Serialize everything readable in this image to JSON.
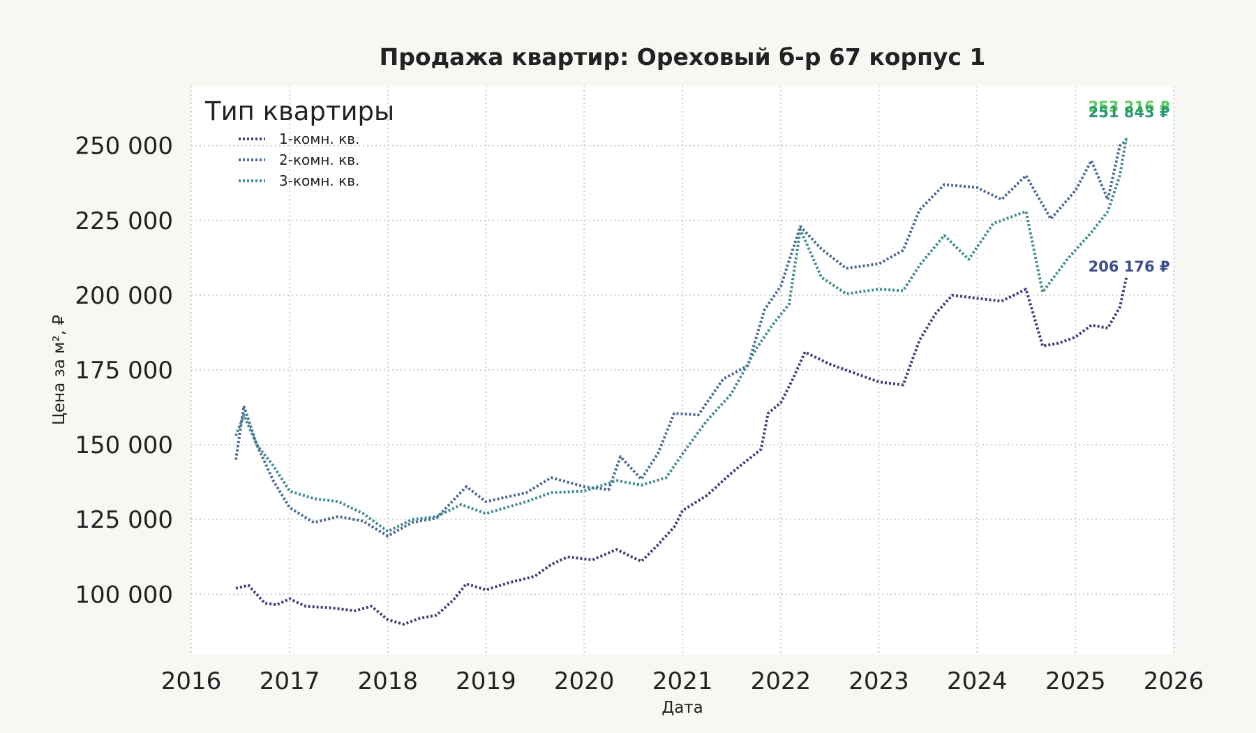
{
  "chart_data": {
    "type": "line",
    "title": "Продажа квартир: Ореховый б-р 67 корпус 1",
    "xlabel": "Дата",
    "ylabel": "Цена за м², ₽",
    "xlim": [
      "2016-01-01",
      "2026-01-01"
    ],
    "ylim": [
      80000,
      270000
    ],
    "x_ticks": [
      "2016",
      "2017",
      "2018",
      "2019",
      "2020",
      "2021",
      "2022",
      "2023",
      "2024",
      "2025",
      "2026"
    ],
    "y_ticks": [
      100000,
      125000,
      150000,
      175000,
      200000,
      225000,
      250000
    ],
    "y_tick_labels": [
      "100 000",
      "125 000",
      "150 000",
      "175 000",
      "200 000",
      "225 000",
      "250 000"
    ],
    "grid": true,
    "legend": {
      "title": "Тип квартиры",
      "placement": "top-left"
    },
    "series": [
      {
        "name": "1-комн. кв.",
        "color": "#46397a",
        "points": [
          [
            "2016-06-15",
            102000
          ],
          [
            "2016-08-01",
            103000
          ],
          [
            "2016-10-01",
            97000
          ],
          [
            "2016-11-15",
            96500
          ],
          [
            "2017-01-01",
            98500
          ],
          [
            "2017-03-01",
            96000
          ],
          [
            "2017-06-01",
            95500
          ],
          [
            "2017-09-01",
            94500
          ],
          [
            "2017-11-01",
            96000
          ],
          [
            "2018-01-01",
            91500
          ],
          [
            "2018-03-01",
            90000
          ],
          [
            "2018-05-01",
            92000
          ],
          [
            "2018-07-01",
            93000
          ],
          [
            "2018-09-01",
            98000
          ],
          [
            "2018-10-20",
            103500
          ],
          [
            "2019-01-01",
            101500
          ],
          [
            "2019-04-01",
            104000
          ],
          [
            "2019-07-01",
            106000
          ],
          [
            "2019-09-01",
            110000
          ],
          [
            "2019-11-01",
            112500
          ],
          [
            "2020-02-01",
            111500
          ],
          [
            "2020-05-01",
            115000
          ],
          [
            "2020-06-15",
            113000
          ],
          [
            "2020-08-01",
            111000
          ],
          [
            "2020-10-01",
            116500
          ],
          [
            "2020-12-01",
            122500
          ],
          [
            "2021-01-01",
            128000
          ],
          [
            "2021-04-01",
            133000
          ],
          [
            "2021-07-01",
            140500
          ],
          [
            "2021-09-01",
            145000
          ],
          [
            "2021-10-20",
            148500
          ],
          [
            "2021-11-15",
            160500
          ],
          [
            "2022-01-01",
            164000
          ],
          [
            "2022-02-15",
            172000
          ],
          [
            "2022-04-01",
            181000
          ],
          [
            "2022-07-01",
            177000
          ],
          [
            "2022-10-01",
            174000
          ],
          [
            "2023-01-01",
            171000
          ],
          [
            "2023-04-01",
            170000
          ],
          [
            "2023-06-01",
            185000
          ],
          [
            "2023-08-01",
            194000
          ],
          [
            "2023-10-01",
            200000
          ],
          [
            "2024-01-01",
            199000
          ],
          [
            "2024-04-01",
            198000
          ],
          [
            "2024-07-01",
            202000
          ],
          [
            "2024-09-01",
            183000
          ],
          [
            "2024-11-01",
            184000
          ],
          [
            "2025-01-01",
            186000
          ],
          [
            "2025-03-01",
            190000
          ],
          [
            "2025-05-01",
            189000
          ],
          [
            "2025-06-15",
            196000
          ],
          [
            "2025-07-10",
            206176
          ]
        ]
      },
      {
        "name": "2-комн. кв.",
        "color": "#4b6894",
        "points": [
          [
            "2016-06-15",
            145000
          ],
          [
            "2016-07-15",
            163000
          ],
          [
            "2016-09-01",
            150000
          ],
          [
            "2016-11-01",
            138000
          ],
          [
            "2017-01-01",
            129000
          ],
          [
            "2017-04-01",
            124000
          ],
          [
            "2017-07-01",
            126000
          ],
          [
            "2017-10-01",
            124500
          ],
          [
            "2018-01-01",
            119500
          ],
          [
            "2018-04-01",
            124000
          ],
          [
            "2018-07-01",
            125500
          ],
          [
            "2018-10-20",
            136000
          ],
          [
            "2019-01-01",
            131000
          ],
          [
            "2019-06-01",
            134000
          ],
          [
            "2019-09-01",
            139000
          ],
          [
            "2020-01-01",
            136000
          ],
          [
            "2020-04-01",
            135000
          ],
          [
            "2020-05-15",
            146000
          ],
          [
            "2020-08-01",
            138500
          ],
          [
            "2020-10-01",
            147000
          ],
          [
            "2020-12-01",
            160500
          ],
          [
            "2021-03-01",
            160000
          ],
          [
            "2021-06-01",
            172000
          ],
          [
            "2021-09-01",
            176500
          ],
          [
            "2021-11-01",
            195000
          ],
          [
            "2022-01-01",
            203000
          ],
          [
            "2022-03-15",
            223000
          ],
          [
            "2022-06-01",
            215500
          ],
          [
            "2022-09-01",
            209000
          ],
          [
            "2023-01-01",
            210500
          ],
          [
            "2023-04-01",
            215000
          ],
          [
            "2023-06-01",
            228500
          ],
          [
            "2023-09-01",
            237000
          ],
          [
            "2024-01-01",
            236000
          ],
          [
            "2024-04-01",
            232000
          ],
          [
            "2024-07-01",
            240000
          ],
          [
            "2024-10-01",
            225500
          ],
          [
            "2025-01-01",
            235000
          ],
          [
            "2025-03-01",
            245000
          ],
          [
            "2025-05-01",
            232000
          ],
          [
            "2025-06-15",
            250000
          ],
          [
            "2025-07-10",
            251843
          ]
        ]
      },
      {
        "name": "3-комн. кв.",
        "color": "#3f8b90",
        "points": [
          [
            "2016-06-15",
            153000
          ],
          [
            "2016-07-15",
            160000
          ],
          [
            "2016-09-01",
            150000
          ],
          [
            "2016-11-01",
            143000
          ],
          [
            "2017-01-01",
            134500
          ],
          [
            "2017-04-01",
            132000
          ],
          [
            "2017-07-01",
            131000
          ],
          [
            "2017-10-01",
            127000
          ],
          [
            "2018-01-01",
            121000
          ],
          [
            "2018-04-01",
            125000
          ],
          [
            "2018-07-01",
            126000
          ],
          [
            "2018-10-01",
            130000
          ],
          [
            "2019-01-01",
            127000
          ],
          [
            "2019-06-01",
            131000
          ],
          [
            "2019-09-01",
            134000
          ],
          [
            "2020-01-01",
            134500
          ],
          [
            "2020-05-01",
            138000
          ],
          [
            "2020-08-01",
            136500
          ],
          [
            "2020-11-01",
            139000
          ],
          [
            "2021-01-01",
            147000
          ],
          [
            "2021-04-01",
            158000
          ],
          [
            "2021-07-01",
            167000
          ],
          [
            "2021-10-01",
            182000
          ],
          [
            "2021-12-01",
            190000
          ],
          [
            "2022-02-01",
            197000
          ],
          [
            "2022-03-15",
            222000
          ],
          [
            "2022-06-01",
            206000
          ],
          [
            "2022-09-01",
            200500
          ],
          [
            "2023-01-01",
            202000
          ],
          [
            "2023-04-01",
            201500
          ],
          [
            "2023-06-01",
            210000
          ],
          [
            "2023-09-01",
            220000
          ],
          [
            "2023-12-01",
            212000
          ],
          [
            "2024-03-01",
            224000
          ],
          [
            "2024-07-01",
            228000
          ],
          [
            "2024-09-01",
            201000
          ],
          [
            "2024-12-01",
            212000
          ],
          [
            "2025-03-01",
            221000
          ],
          [
            "2025-05-01",
            228000
          ],
          [
            "2025-06-15",
            240000
          ],
          [
            "2025-07-10",
            253216
          ]
        ]
      }
    ],
    "annotations": [
      {
        "text": "253 216 ₽",
        "series": "3-комн. кв.",
        "color": "#5ec962"
      },
      {
        "text": "251 843 ₽",
        "series": "2-комн. кв.",
        "color": "#2a9a6e"
      },
      {
        "text": "206 176 ₽",
        "series": "1-комн. кв.",
        "color": "#3b4f8a"
      }
    ]
  }
}
